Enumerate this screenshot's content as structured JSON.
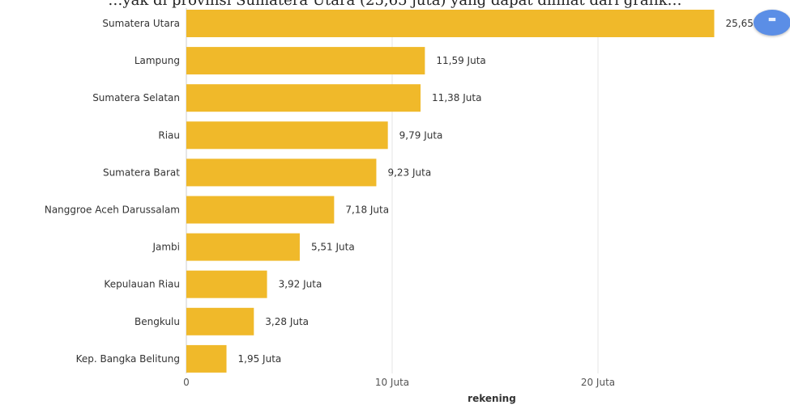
{
  "header_text": "…yak di provinsi Sumatera Utara (25,65 juta) yang dapat dilihat dari grafik…",
  "accent_color": "#f0b92a",
  "fab": {
    "icon": "comment-icon",
    "color": "#5b8ee6"
  },
  "chart_data": {
    "type": "bar",
    "orientation": "horizontal",
    "title": "",
    "xlabel": "rekening",
    "ylabel": "",
    "xlim": [
      0,
      27
    ],
    "x_ticks": [
      0,
      10,
      20
    ],
    "x_tick_labels": [
      "0",
      "10 Juta",
      "20 Juta"
    ],
    "grid": true,
    "categories": [
      "Sumatera Utara",
      "Lampung",
      "Sumatera Selatan",
      "Riau",
      "Sumatera Barat",
      "Nanggroe Aceh Darussalam",
      "Jambi",
      "Kepulauan Riau",
      "Bengkulu",
      "Kep. Bangka Belitung"
    ],
    "values": [
      25.65,
      11.59,
      11.38,
      9.79,
      9.23,
      7.18,
      5.51,
      3.92,
      3.28,
      1.95
    ],
    "value_labels": [
      "25,65 Juta",
      "11,59 Juta",
      "11,38 Juta",
      "9,79 Juta",
      "9,23 Juta",
      "7,18 Juta",
      "5,51 Juta",
      "3,92 Juta",
      "3,28 Juta",
      "1,95 Juta"
    ],
    "bar_color": "#f0b92a"
  }
}
